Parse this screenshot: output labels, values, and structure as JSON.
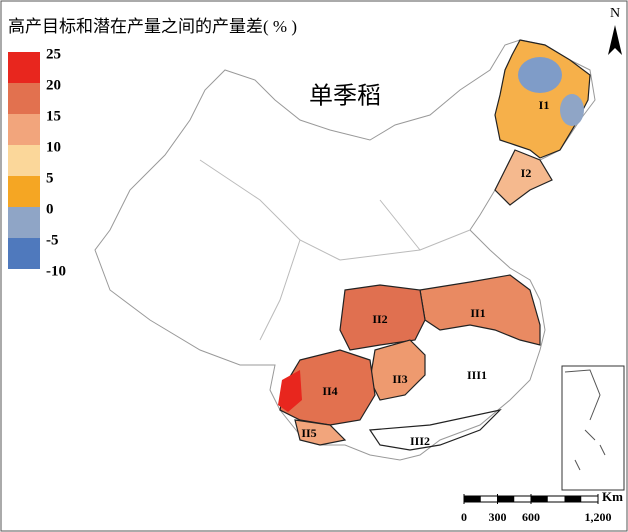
{
  "header": {
    "title": "高产目标和潜在产量之间的产量差( % )"
  },
  "map": {
    "crop_label": "单季稻",
    "north_label": "N",
    "regions": [
      "I1",
      "I2",
      "II1",
      "II2",
      "II3",
      "II4",
      "II5",
      "III1",
      "III2"
    ]
  },
  "legend": {
    "ticks": [
      25,
      20,
      15,
      10,
      5,
      0,
      -5,
      -10
    ],
    "colors": [
      "#e8261e",
      "#e2714f",
      "#f2a57c",
      "#fbd79a",
      "#f5a623",
      "#8fa5c6",
      "#4f79bd"
    ]
  },
  "scale_bar": {
    "unit": "Km",
    "ticks": [
      0,
      300,
      600,
      {
        "value": 1200,
        "label": "1,200"
      }
    ]
  }
}
